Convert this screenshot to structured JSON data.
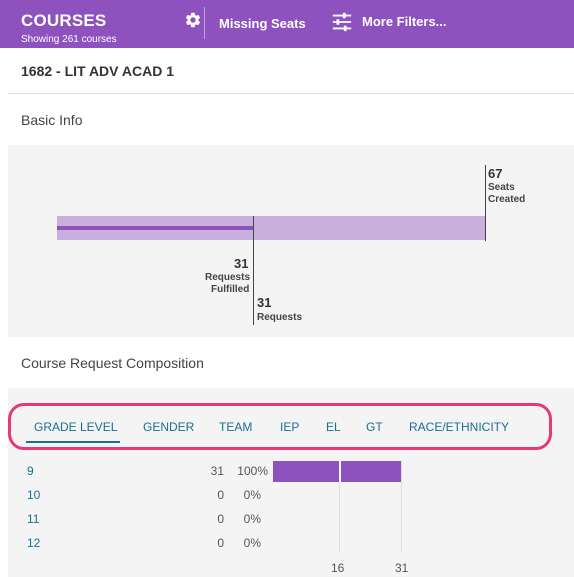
{
  "header": {
    "title": "COURSES",
    "subtitle": "Showing 261 courses",
    "gear_icon": "gear-icon",
    "missing_seats_label": "Missing Seats",
    "filters_icon": "sliders-icon",
    "more_filters_label": "More Filters..."
  },
  "course": {
    "title": "1682 - LIT ADV ACAD 1"
  },
  "sections": {
    "basic_info": "Basic Info",
    "composition": "Course Request Composition"
  },
  "seats_chart": {
    "seats_created": {
      "value": "67",
      "label_line1": "Seats",
      "label_line2": "Created"
    },
    "requests_fulfilled": {
      "value": "31",
      "label_line1": "Requests",
      "label_line2": "Fulfilled"
    },
    "requests": {
      "value": "31",
      "label": "Requests"
    },
    "colors": {
      "seats": "#c9b0dc",
      "fulfilled": "#8e52bf"
    }
  },
  "tabs": [
    {
      "label": "GRADE LEVEL",
      "active": true
    },
    {
      "label": "GENDER",
      "active": false
    },
    {
      "label": "TEAM",
      "active": false
    },
    {
      "label": "IEP",
      "active": false
    },
    {
      "label": "EL",
      "active": false
    },
    {
      "label": "GT",
      "active": false
    },
    {
      "label": "RACE/ETHNICITY",
      "active": false
    }
  ],
  "chart_data": {
    "type": "bar",
    "categories": [
      "9",
      "10",
      "11",
      "12"
    ],
    "values": [
      31,
      0,
      0,
      0
    ],
    "percents": [
      "100%",
      "0%",
      "0%",
      "0%"
    ],
    "ticks": [
      "16",
      "31"
    ],
    "xlim": [
      0,
      31
    ],
    "color": "#8e52bf",
    "grid": true
  },
  "colors": {
    "header": "#8e52bf",
    "accent": "#1a6f91",
    "highlight": "#e8387a"
  }
}
